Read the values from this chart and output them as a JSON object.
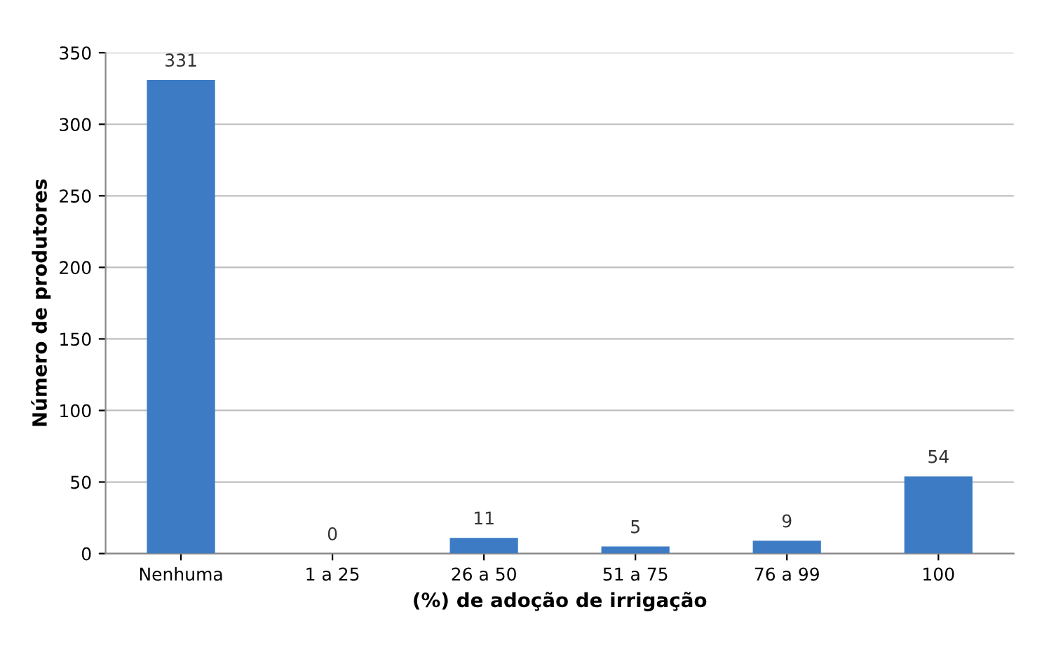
{
  "chart_data": {
    "type": "bar",
    "xlabel": "(%) de adoção de irrigação",
    "ylabel": "Número de produtores",
    "categories": [
      "Nenhuma",
      "1 a 25",
      "26 a 50",
      "51 a 75",
      "76 a 99",
      "100"
    ],
    "values": [
      331,
      0,
      11,
      5,
      9,
      54
    ],
    "color": "#3d7cc4",
    "ylim": [
      0,
      350
    ],
    "yticks": [
      0,
      50,
      100,
      150,
      200,
      250,
      300,
      350
    ],
    "grid": "y",
    "data_labels": true
  }
}
